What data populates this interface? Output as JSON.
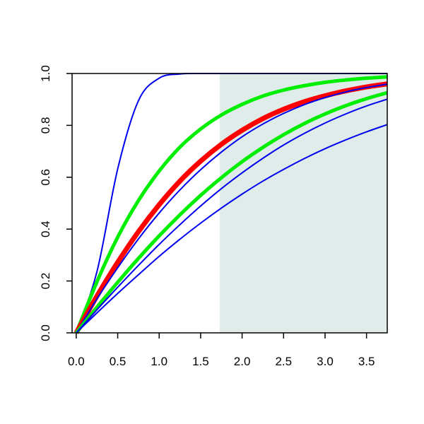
{
  "chart_data": {
    "type": "line",
    "title": "",
    "xlabel": "",
    "ylabel": "",
    "xlim": [
      -0.05,
      3.75
    ],
    "ylim": [
      0,
      1
    ],
    "xticks": [
      0,
      0.5,
      1,
      1.5,
      2,
      2.5,
      3,
      3.5
    ],
    "xtick_labels": [
      "0.0",
      "0.5",
      "1.0",
      "1.5",
      "2.0",
      "2.5",
      "3.0",
      "3.5"
    ],
    "yticks": [
      0,
      0.2,
      0.4,
      0.6,
      0.8,
      1
    ],
    "ytick_labels": [
      "0.0",
      "0.2",
      "0.4",
      "0.6",
      "0.8",
      "1.0"
    ],
    "shaded_region": {
      "x_from": 1.73,
      "x_to": 3.75,
      "color": "#dfecea"
    },
    "x": [
      0,
      0.25,
      0.5,
      0.75,
      1,
      1.25,
      1.5,
      1.75,
      2,
      2.25,
      2.5,
      2.75,
      3,
      3.25,
      3.5,
      3.75
    ],
    "series": [
      {
        "color": "#0000ee",
        "width": "thin",
        "values": [
          0,
          0.236,
          0.632,
          0.895,
          0.982,
          0.998,
          1.0,
          1.0,
          1.0,
          1.0,
          1.0,
          1.0,
          1.0,
          1.0,
          1.0,
          1.0
        ]
      },
      {
        "color": "#00ee00",
        "width": "thick",
        "values": [
          0,
          0.197,
          0.369,
          0.51,
          0.624,
          0.716,
          0.786,
          0.84,
          0.881,
          0.913,
          0.936,
          0.953,
          0.966,
          0.975,
          0.982,
          0.987
        ]
      },
      {
        "color": "#ff0000",
        "width": "thickest",
        "values": [
          0,
          0.142,
          0.272,
          0.39,
          0.494,
          0.585,
          0.662,
          0.727,
          0.781,
          0.826,
          0.862,
          0.891,
          0.914,
          0.933,
          0.948,
          0.96
        ]
      },
      {
        "color": "#0000ee",
        "width": "thin",
        "values": [
          0,
          0.131,
          0.251,
          0.362,
          0.462,
          0.551,
          0.629,
          0.697,
          0.756,
          0.805,
          0.846,
          0.88,
          0.907,
          0.929,
          0.946,
          0.959
        ]
      },
      {
        "color": "#00ee00",
        "width": "thick",
        "values": [
          0,
          0.099,
          0.195,
          0.287,
          0.374,
          0.455,
          0.53,
          0.598,
          0.66,
          0.715,
          0.764,
          0.807,
          0.844,
          0.876,
          0.903,
          0.926
        ]
      },
      {
        "color": "#0000ee",
        "width": "thin",
        "values": [
          0,
          0.089,
          0.176,
          0.26,
          0.341,
          0.417,
          0.489,
          0.556,
          0.617,
          0.673,
          0.724,
          0.769,
          0.809,
          0.844,
          0.875,
          0.901
        ]
      },
      {
        "color": "#0000ee",
        "width": "thin",
        "values": [
          0,
          0.077,
          0.152,
          0.224,
          0.295,
          0.361,
          0.423,
          0.481,
          0.535,
          0.585,
          0.63,
          0.672,
          0.71,
          0.744,
          0.775,
          0.803
        ]
      }
    ]
  }
}
